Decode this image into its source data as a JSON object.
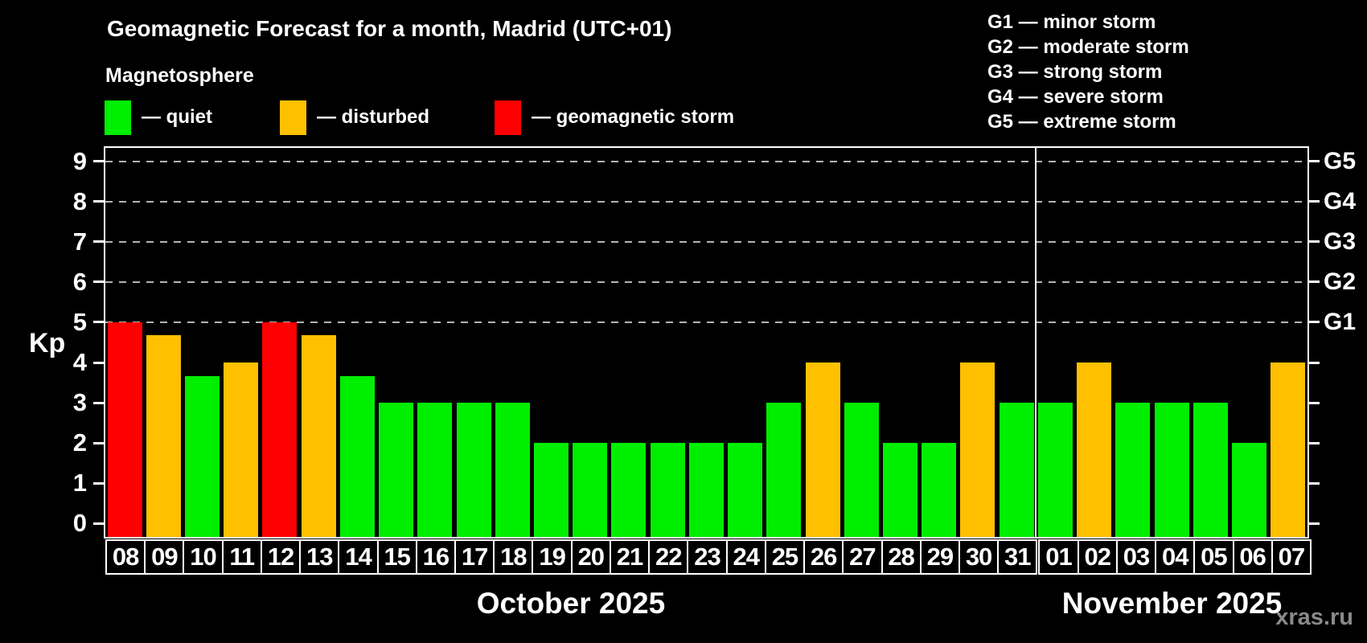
{
  "title": "Geomagnetic Forecast for a month, Madrid (UTC+01)",
  "subtitle": "Magnetosphere",
  "legend": {
    "quiet": "— quiet",
    "disturbed": "— disturbed",
    "storm": "— geomagnetic storm"
  },
  "g_legend": [
    "G1 — minor storm",
    "G2 — moderate storm",
    "G3 — strong storm",
    "G4 — severe storm",
    "G5 — extreme storm"
  ],
  "axis": {
    "ylabel": "Kp",
    "yticks": [
      0,
      1,
      2,
      3,
      4,
      5,
      6,
      7,
      8,
      9
    ],
    "g_levels": [
      {
        "label": "G1",
        "value": 5
      },
      {
        "label": "G2",
        "value": 6
      },
      {
        "label": "G3",
        "value": 7
      },
      {
        "label": "G4",
        "value": 8
      },
      {
        "label": "G5",
        "value": 9
      }
    ]
  },
  "months": [
    {
      "label": "October 2025",
      "days": 24
    },
    {
      "label": "November 2025",
      "days": 7
    }
  ],
  "watermark": "xras.ru",
  "colors": {
    "quiet": "#00ee00",
    "disturbed": "#ffc000",
    "storm": "#ff0000"
  },
  "chart_data": {
    "type": "bar",
    "title": "Geomagnetic Forecast for a month, Madrid (UTC+01)",
    "ylabel": "Kp",
    "ylim": [
      0,
      9
    ],
    "grid_values": [
      5,
      6,
      7,
      8,
      9
    ],
    "legend_position": "top",
    "categories": [
      "08",
      "09",
      "10",
      "11",
      "12",
      "13",
      "14",
      "15",
      "16",
      "17",
      "18",
      "19",
      "20",
      "21",
      "22",
      "23",
      "24",
      "25",
      "26",
      "27",
      "28",
      "29",
      "30",
      "31",
      "01",
      "02",
      "03",
      "04",
      "05",
      "06",
      "07"
    ],
    "values": [
      5.0,
      4.67,
      3.67,
      4.0,
      5.0,
      4.67,
      3.67,
      3.0,
      3.0,
      3.0,
      3.0,
      2.0,
      2.0,
      2.0,
      2.0,
      2.0,
      2.0,
      3.0,
      4.0,
      3.0,
      2.0,
      2.0,
      4.0,
      3.0,
      3.0,
      4.0,
      3.0,
      3.0,
      3.0,
      2.0,
      4.0
    ],
    "statuses": [
      "storm",
      "disturbed",
      "quiet",
      "disturbed",
      "storm",
      "disturbed",
      "quiet",
      "quiet",
      "quiet",
      "quiet",
      "quiet",
      "quiet",
      "quiet",
      "quiet",
      "quiet",
      "quiet",
      "quiet",
      "quiet",
      "disturbed",
      "quiet",
      "quiet",
      "quiet",
      "disturbed",
      "quiet",
      "quiet",
      "disturbed",
      "quiet",
      "quiet",
      "quiet",
      "quiet",
      "disturbed"
    ]
  }
}
